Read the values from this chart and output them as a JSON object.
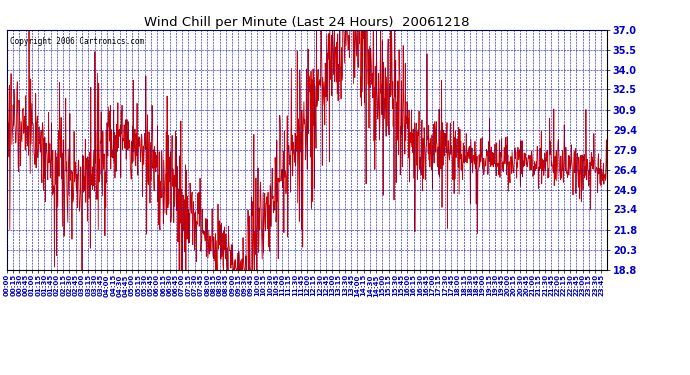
{
  "title": "Wind Chill per Minute (Last 24 Hours)  20061218",
  "copyright": "Copyright 2006 Cartronics.com",
  "ylabel_values": [
    37.0,
    35.5,
    34.0,
    32.5,
    30.9,
    29.4,
    27.9,
    26.4,
    24.9,
    23.4,
    21.8,
    20.3,
    18.8
  ],
  "ymin": 18.8,
  "ymax": 37.0,
  "line_color": "#cc0000",
  "bg_color": "#ffffff",
  "plot_bg_color": "#ffffff",
  "grid_color": "#0000cc",
  "title_color": "#000000",
  "border_color": "#000000",
  "figsize": [
    6.9,
    3.75
  ],
  "dpi": 100
}
